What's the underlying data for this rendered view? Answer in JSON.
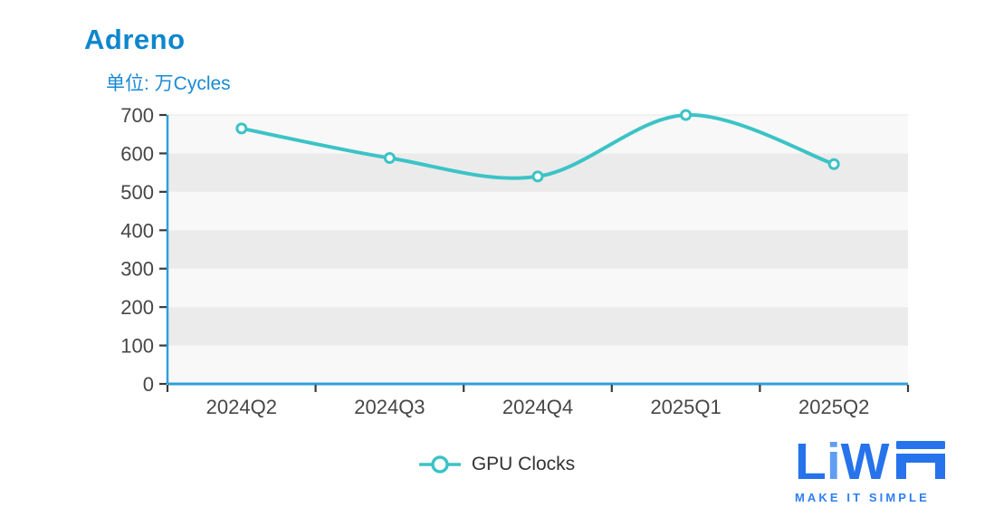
{
  "header": {
    "title": "Adreno",
    "subtitle": "单位: 万Cycles"
  },
  "legend": {
    "label": "GPU Clocks"
  },
  "logo": {
    "full_name": "LiWA",
    "text_prefix_l": "L",
    "text_prefix_i": "i",
    "text_prefix_w": "W",
    "stylized_last_letter": "A",
    "tagline": "MAKE IT SIMPLE"
  },
  "colors": {
    "title_blue": "#0e86cd",
    "subtitle_blue": "#1b8ad3",
    "axis_blue": "#2f9fdb",
    "series_teal": "#3cc3c6",
    "tick_gray": "#3c3c3c",
    "axis_label_gray": "#464646",
    "band_light": "#f8f8f8",
    "band_dark": "#ebebeb",
    "top_gridline": "#eeeeee",
    "legend_text": "#333333",
    "logo_blue": "#2673eb",
    "logo_light_blue": "#5f9ef3",
    "tagline_blue": "#2e7ff0"
  },
  "chart_data": {
    "type": "line",
    "title": "Adreno",
    "unit_label": "单位: 万Cycles",
    "categories": [
      "2024Q2",
      "2024Q3",
      "2024Q4",
      "2025Q1",
      "2025Q2"
    ],
    "series": [
      {
        "name": "GPU Clocks",
        "values": [
          665,
          588,
          540,
          700,
          572
        ]
      }
    ],
    "ylim": [
      0,
      700
    ],
    "y_ticks": [
      0,
      100,
      200,
      300,
      400,
      500,
      600,
      700
    ],
    "xlabel": "",
    "ylabel": "万Cycles",
    "smooth": true,
    "grid": "alternating-bands",
    "legend_position": "bottom"
  }
}
